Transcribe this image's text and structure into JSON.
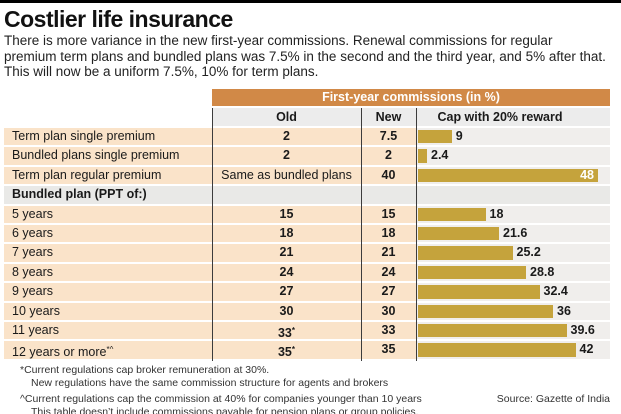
{
  "header": {
    "title": "Costlier life insurance",
    "subtitle": "There is more variance in the new first-year commissions. Renewal commissions for regular premium term plans and bundled plans was 7.5% in the second and the third year, and 5% after that. This will now be a uniform 7.5%, 10% for term plans."
  },
  "table": {
    "band_title": "First-year commissions (in %)",
    "columns": {
      "old": "Old",
      "new": "New",
      "cap": "Cap with 20% reward"
    },
    "rows": [
      {
        "type": "data",
        "label": "Term plan single premium",
        "old": "2",
        "new": "7.5",
        "cap": 9,
        "cap_label": "9"
      },
      {
        "type": "data",
        "label": "Bundled plans single premium",
        "old": "2",
        "new": "2",
        "cap": 2.4,
        "cap_label": "2.4"
      },
      {
        "type": "data",
        "label": "Term plan regular premium",
        "old": "Same as bundled plans",
        "old_plain": true,
        "new": "40",
        "cap": 48,
        "cap_label": "48",
        "label_inside": true
      },
      {
        "type": "section",
        "label": "Bundled plan (PPT of:)"
      },
      {
        "type": "data",
        "label": "5 years",
        "old": "15",
        "new": "15",
        "cap": 18,
        "cap_label": "18"
      },
      {
        "type": "data",
        "label": "6 years",
        "old": "18",
        "new": "18",
        "cap": 21.6,
        "cap_label": "21.6"
      },
      {
        "type": "data",
        "label": "7 years",
        "old": "21",
        "new": "21",
        "cap": 25.2,
        "cap_label": "25.2"
      },
      {
        "type": "data",
        "label": "8 years",
        "old": "24",
        "new": "24",
        "cap": 28.8,
        "cap_label": "28.8"
      },
      {
        "type": "data",
        "label": "9 years",
        "old": "27",
        "new": "27",
        "cap": 32.4,
        "cap_label": "32.4"
      },
      {
        "type": "data",
        "label": "10 years",
        "old": "30",
        "new": "30",
        "cap": 36,
        "cap_label": "36"
      },
      {
        "type": "data",
        "label": "11 years",
        "old": "33",
        "old_sup": "*",
        "new": "33",
        "cap": 39.6,
        "cap_label": "39.6"
      },
      {
        "type": "data",
        "label": "12 years or more",
        "label_sup": "*^",
        "old": "35",
        "old_sup": "*",
        "new": "35",
        "cap": 42,
        "cap_label": "42"
      }
    ]
  },
  "footnotes": [
    "*Current regulations cap broker remuneration at 30%.",
    "New regulations have the same commission structure for agents and brokers",
    "^Current regulations cap the commission at 40% for companies younger than 10 years",
    "This table doesn’t include commissions payable for pension plans or group policies."
  ],
  "source": "Source: Gazette of India",
  "colors": {
    "band_orange": "#d18947",
    "bar_gold": "#c5a33c",
    "row_peach": "#fae3c9",
    "bar_zone_gray": "#f0eeec",
    "header_gray": "#ececec",
    "section_gray": "#e9e9e7"
  },
  "chart_data": {
    "type": "bar",
    "title": "First-year commissions (in %)",
    "categories": [
      "Term plan single premium",
      "Bundled plans single premium",
      "Term plan regular premium",
      "5 years",
      "6 years",
      "7 years",
      "8 years",
      "9 years",
      "10 years",
      "11 years",
      "12 years or more"
    ],
    "category_group_label": "Bundled plan (PPT of:)",
    "series": [
      {
        "name": "Old",
        "values": [
          2,
          2,
          "Same as bundled plans",
          15,
          18,
          21,
          24,
          27,
          30,
          33,
          35
        ]
      },
      {
        "name": "New",
        "values": [
          7.5,
          2,
          40,
          15,
          18,
          21,
          24,
          27,
          30,
          33,
          35
        ]
      },
      {
        "name": "Cap with 20% reward",
        "values": [
          9,
          2.4,
          48,
          18,
          21.6,
          25.2,
          28.8,
          32.4,
          36,
          39.6,
          42
        ]
      }
    ],
    "bars_plotted_series": "Cap with 20% reward",
    "orientation": "horizontal",
    "xlim": [
      0,
      51
    ],
    "grid": false,
    "legend_position": "none"
  }
}
